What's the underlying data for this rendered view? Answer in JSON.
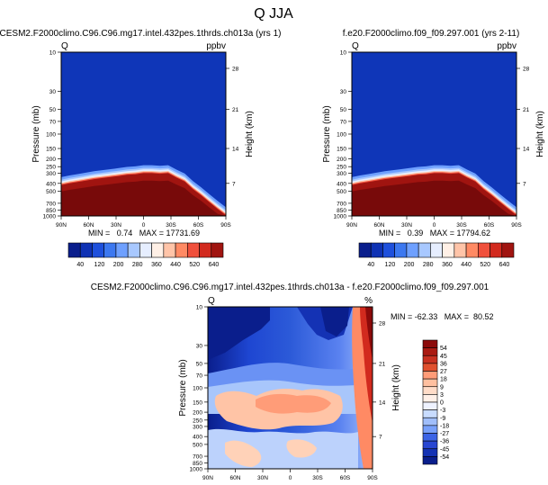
{
  "figure": {
    "title": "Q JJA"
  },
  "colors": {
    "abs_scale": [
      "#0a1e8c",
      "#0f32b4",
      "#1e50dc",
      "#3c78f0",
      "#6ea0ff",
      "#a8c8ff",
      "#e6eeff",
      "#fff0e6",
      "#ffc4a8",
      "#ff8a64",
      "#f0503c",
      "#d22a1e",
      "#a01410",
      "#780a0a"
    ],
    "diff_scale": [
      "#0a1e8c",
      "#1432b4",
      "#2846d2",
      "#3c64e6",
      "#5a82f0",
      "#78a0fa",
      "#a0befa",
      "#c8dcff",
      "#eef2ff",
      "#fff0e8",
      "#ffdcc8",
      "#ffc0a0",
      "#ff9c78",
      "#f07850",
      "#e0502e",
      "#c83020",
      "#aa1a12",
      "#8c0a0a"
    ]
  },
  "chart_data": [
    {
      "type": "heatmap",
      "panel": "top-left",
      "title": "CESM2.F2000climo.C96.C96.mg17.intel.432pes.1thrds.ch013a (yrs 1)",
      "left_label": "Q",
      "right_label": "ppbv",
      "xlabel": "",
      "ylabel": "Pressure (mb)",
      "ylabel_right": "Height (km)",
      "x_ticks": [
        "90N",
        "60N",
        "30N",
        "0",
        "30S",
        "60S",
        "90S"
      ],
      "y_ticks": [
        "10",
        "30",
        "50",
        "70",
        "100",
        "150",
        "200",
        "250",
        "300",
        "400",
        "500",
        "700",
        "850",
        "1000"
      ],
      "y_ticks_right": [
        "28",
        "21",
        "14",
        "7"
      ],
      "stats": "MIN =   0.74   MAX = 17731.69",
      "levels": [
        "40",
        "120",
        "200",
        "280",
        "360",
        "440",
        "520",
        "640"
      ],
      "field_top_p": [
        420,
        400,
        385,
        370,
        355,
        345,
        335,
        325,
        315,
        310,
        300,
        300,
        305,
        300,
        340,
        380,
        470,
        560,
        680,
        820,
        980
      ]
    },
    {
      "type": "heatmap",
      "panel": "top-right",
      "title": "f.e20.F2000climo.f09_f09.297.001 (yrs 2-11)",
      "left_label": "Q",
      "right_label": "ppbv",
      "xlabel": "",
      "ylabel": "Pressure (mb)",
      "ylabel_right": "Height (km)",
      "x_ticks": [
        "90N",
        "60N",
        "30N",
        "0",
        "30S",
        "60S",
        "90S"
      ],
      "y_ticks": [
        "10",
        "30",
        "50",
        "70",
        "100",
        "150",
        "200",
        "250",
        "300",
        "400",
        "500",
        "700",
        "850",
        "1000"
      ],
      "y_ticks_right": [
        "28",
        "21",
        "14",
        "7"
      ],
      "stats": "MIN =   0.39   MAX = 17794.62",
      "levels": [
        "40",
        "120",
        "200",
        "280",
        "360",
        "440",
        "520",
        "640"
      ],
      "field_top_p": [
        420,
        400,
        385,
        370,
        355,
        345,
        335,
        325,
        315,
        310,
        300,
        300,
        305,
        300,
        340,
        380,
        470,
        560,
        680,
        820,
        980
      ]
    },
    {
      "type": "heatmap",
      "panel": "bottom-difference",
      "title": "CESM2.F2000climo.C96.C96.mg17.intel.432pes.1thrds.ch013a - f.e20.F2000climo.f09_f09.297.001",
      "left_label": "Q",
      "right_label": "%",
      "xlabel": "",
      "ylabel": "Pressure (mb)",
      "ylabel_right": "Height (km)",
      "x_ticks": [
        "90N",
        "60N",
        "30N",
        "0",
        "30S",
        "60S",
        "90S"
      ],
      "y_ticks": [
        "10",
        "30",
        "50",
        "70",
        "100",
        "150",
        "200",
        "250",
        "300",
        "400",
        "500",
        "700",
        "850",
        "1000"
      ],
      "y_ticks_right": [
        "28",
        "21",
        "14",
        "7"
      ],
      "stats": "MIN = -62.33   MAX =  80.52",
      "levels": [
        "54",
        "45",
        "36",
        "27",
        "18",
        "9",
        "3",
        "0",
        "-3",
        "-9",
        "-18",
        "-27",
        "-36",
        "-45",
        "-54"
      ]
    }
  ]
}
